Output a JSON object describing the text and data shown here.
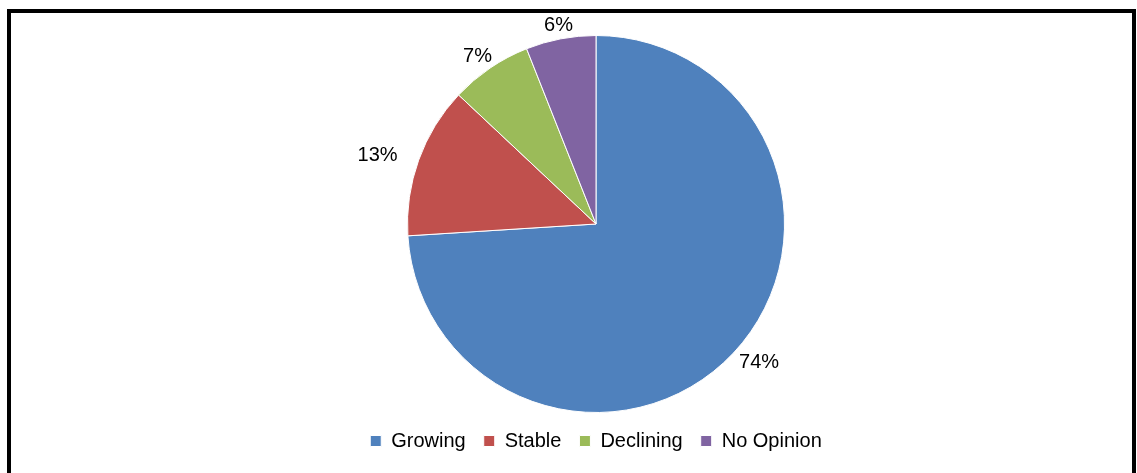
{
  "chart_data": {
    "type": "pie",
    "categories": [
      "Growing",
      "Stable",
      "Declining",
      "No Opinion"
    ],
    "values": [
      74,
      13,
      7,
      6
    ],
    "colors": [
      "#4f81bd",
      "#c0504d",
      "#9bbb59",
      "#8064a2"
    ],
    "value_labels": [
      "74%",
      "13%",
      "7%",
      "6%"
    ],
    "legend": "bottom"
  }
}
